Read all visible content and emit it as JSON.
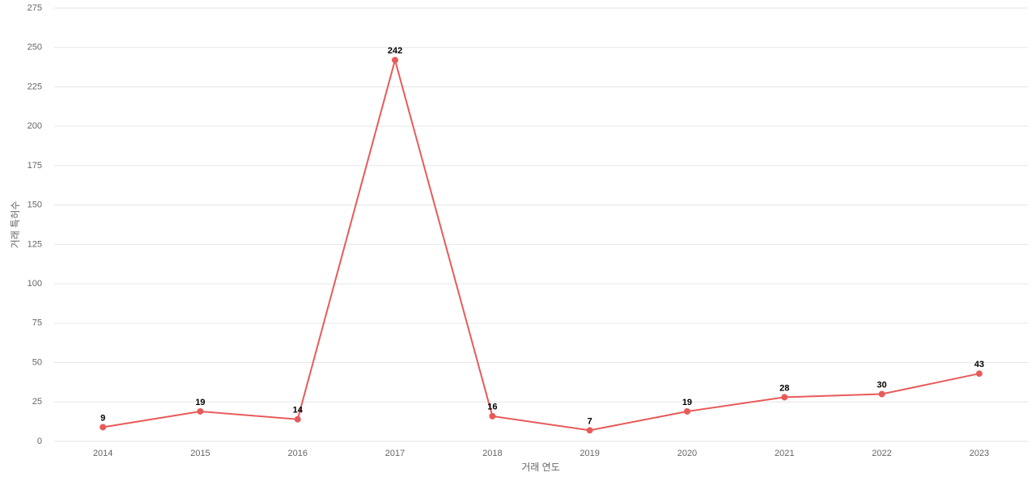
{
  "chart_data": {
    "type": "line",
    "x_label": "거래 연도",
    "y_label": "거래 특허수",
    "categories": [
      "2014",
      "2015",
      "2016",
      "2017",
      "2018",
      "2019",
      "2020",
      "2021",
      "2022",
      "2023"
    ],
    "series": [
      {
        "name": "거래 특허수",
        "color": "#e85a5a",
        "values": [
          9,
          19,
          14,
          242,
          16,
          7,
          19,
          28,
          30,
          43
        ]
      }
    ],
    "ylim": [
      0,
      275
    ],
    "yticks": [
      0,
      25,
      50,
      75,
      100,
      125,
      150,
      175,
      200,
      225,
      250,
      275
    ],
    "grid": true,
    "legend": false,
    "data_labels": true
  }
}
